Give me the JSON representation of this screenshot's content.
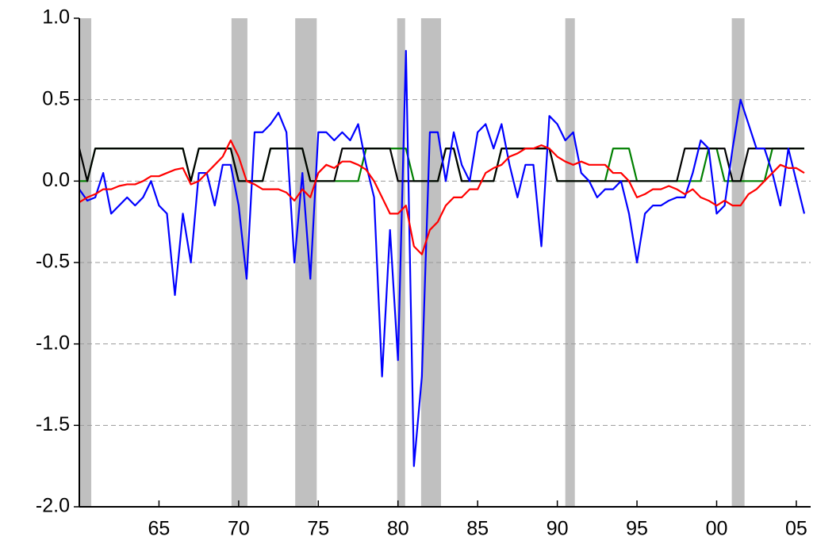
{
  "chart_data": {
    "type": "line",
    "x": [
      1960,
      1960.5,
      1961,
      1961.5,
      1962,
      1962.5,
      1963,
      1963.5,
      1964,
      1964.5,
      1965,
      1965.5,
      1966,
      1966.5,
      1967,
      1967.5,
      1968,
      1968.5,
      1969,
      1969.5,
      1970,
      1970.5,
      1971,
      1971.5,
      1972,
      1972.5,
      1973,
      1973.5,
      1974,
      1974.5,
      1975,
      1975.5,
      1976,
      1976.5,
      1977,
      1977.5,
      1978,
      1978.5,
      1979,
      1979.5,
      1980,
      1980.5,
      1981,
      1981.5,
      1982,
      1982.5,
      1983,
      1983.5,
      1984,
      1984.5,
      1985,
      1985.5,
      1986,
      1986.5,
      1987,
      1987.5,
      1988,
      1988.5,
      1989,
      1989.5,
      1990,
      1990.5,
      1991,
      1991.5,
      1992,
      1992.5,
      1993,
      1993.5,
      1994,
      1994.5,
      1995,
      1995.5,
      1996,
      1996.5,
      1997,
      1997.5,
      1998,
      1998.5,
      1999,
      1999.5,
      2000,
      2000.5,
      2001,
      2001.5,
      2002,
      2002.5,
      2003,
      2003.5,
      2004,
      2004.5,
      2005,
      2005.5
    ],
    "series": [
      {
        "color": "#008000",
        "values": [
          0,
          0,
          0.2,
          0.2,
          0.2,
          0.2,
          0.2,
          0.2,
          0.2,
          0.2,
          0.2,
          0.2,
          0.2,
          0.2,
          0,
          0.2,
          0.2,
          0.2,
          0.2,
          0.2,
          0,
          0,
          0,
          0,
          0.2,
          0.2,
          0.2,
          0.2,
          0.2,
          0,
          0,
          0,
          0,
          0,
          0,
          0,
          0.2,
          0.2,
          0.2,
          0.2,
          0.2,
          0.2,
          0,
          0,
          0,
          0,
          0.2,
          0.2,
          0,
          0,
          0,
          0,
          0,
          0.2,
          0.2,
          0.2,
          0.2,
          0.2,
          0.2,
          0.2,
          0,
          0,
          0,
          0,
          0,
          0,
          0,
          0.2,
          0.2,
          0.2,
          0,
          0,
          0,
          0,
          0,
          0,
          0,
          0,
          0,
          0.2,
          0.2,
          0,
          0,
          0,
          0,
          0,
          0,
          0.2,
          0.2,
          0.2,
          0.2,
          0.2
        ]
      },
      {
        "color": "#000000",
        "values": [
          0.2,
          0,
          0.2,
          0.2,
          0.2,
          0.2,
          0.2,
          0.2,
          0.2,
          0.2,
          0.2,
          0.2,
          0.2,
          0.2,
          0,
          0.2,
          0.2,
          0.2,
          0.2,
          0.2,
          0,
          0,
          0,
          0,
          0.2,
          0.2,
          0.2,
          0.2,
          0.2,
          0,
          0,
          0,
          0,
          0.2,
          0.2,
          0.2,
          0.2,
          0.2,
          0.2,
          0.2,
          0,
          0,
          0,
          0,
          0,
          0,
          0.2,
          0.2,
          0,
          0,
          0,
          0,
          0,
          0.2,
          0.2,
          0.2,
          0.2,
          0.2,
          0.2,
          0.2,
          0,
          0,
          0,
          0,
          0,
          0,
          0,
          0,
          0,
          0,
          0,
          0,
          0,
          0,
          0,
          0,
          0.2,
          0.2,
          0.2,
          0.2,
          0.2,
          0.2,
          0,
          0,
          0.2,
          0.2,
          0.2,
          0.2,
          0.2,
          0.2,
          0.2,
          0.2
        ]
      },
      {
        "color": "#0000ff",
        "values": [
          -0.05,
          -0.12,
          -0.1,
          0.05,
          -0.2,
          -0.15,
          -0.1,
          -0.15,
          -0.1,
          0.0,
          -0.15,
          -0.2,
          -0.7,
          -0.2,
          -0.5,
          0.05,
          0.05,
          -0.15,
          0.1,
          0.1,
          -0.15,
          -0.6,
          0.3,
          0.3,
          0.35,
          0.42,
          0.3,
          -0.5,
          0.05,
          -0.6,
          0.3,
          0.3,
          0.25,
          0.3,
          0.25,
          0.35,
          0.1,
          -0.1,
          -1.2,
          -0.3,
          -1.1,
          0.8,
          -1.75,
          -1.2,
          0.3,
          0.3,
          0.0,
          0.3,
          0.1,
          0.0,
          0.3,
          0.35,
          0.2,
          0.35,
          0.1,
          -0.1,
          0.1,
          0.1,
          -0.4,
          0.4,
          0.35,
          0.25,
          0.3,
          0.05,
          0.0,
          -0.1,
          -0.05,
          -0.05,
          0.0,
          -0.2,
          -0.5,
          -0.2,
          -0.15,
          -0.15,
          -0.12,
          -0.1,
          -0.1,
          0.05,
          0.25,
          0.2,
          -0.2,
          -0.15,
          0.2,
          0.5,
          0.35,
          0.2,
          0.2,
          0.05,
          -0.15,
          0.2,
          0.0,
          -0.2
        ]
      },
      {
        "color": "#ff0000",
        "values": [
          -0.13,
          -0.1,
          -0.08,
          -0.05,
          -0.05,
          -0.03,
          -0.02,
          -0.02,
          0.0,
          0.03,
          0.03,
          0.05,
          0.07,
          0.08,
          -0.02,
          0.0,
          0.05,
          0.1,
          0.15,
          0.25,
          0.15,
          0.0,
          -0.02,
          -0.05,
          -0.05,
          -0.05,
          -0.07,
          -0.12,
          -0.05,
          -0.1,
          0.05,
          0.1,
          0.08,
          0.12,
          0.12,
          0.1,
          0.07,
          0.0,
          -0.1,
          -0.2,
          -0.2,
          -0.15,
          -0.4,
          -0.45,
          -0.3,
          -0.25,
          -0.15,
          -0.1,
          -0.1,
          -0.05,
          -0.05,
          0.05,
          0.08,
          0.1,
          0.15,
          0.17,
          0.2,
          0.2,
          0.22,
          0.2,
          0.15,
          0.12,
          0.1,
          0.12,
          0.1,
          0.1,
          0.1,
          0.05,
          0.05,
          0.0,
          -0.1,
          -0.08,
          -0.05,
          -0.05,
          -0.03,
          -0.05,
          -0.08,
          -0.05,
          -0.1,
          -0.12,
          -0.15,
          -0.12,
          -0.15,
          -0.15,
          -0.08,
          -0.05,
          0.0,
          0.05,
          0.1,
          0.08,
          0.08,
          0.05
        ]
      }
    ],
    "shaded_periods": [
      [
        1960.0,
        1960.75
      ],
      [
        1969.55,
        1970.55
      ],
      [
        1973.55,
        1974.9
      ],
      [
        1979.95,
        1980.45
      ],
      [
        1981.45,
        1982.7
      ],
      [
        1990.5,
        1991.1
      ],
      [
        2000.95,
        2001.75
      ]
    ],
    "shade_color": "#c0c0c0",
    "xlim": [
      1960,
      2005.9
    ],
    "xticks": [
      {
        "value": 1965,
        "label": "65"
      },
      {
        "value": 1970,
        "label": "70"
      },
      {
        "value": 1975,
        "label": "75"
      },
      {
        "value": 1980,
        "label": "80"
      },
      {
        "value": 1985,
        "label": "85"
      },
      {
        "value": 1990,
        "label": "90"
      },
      {
        "value": 1995,
        "label": "95"
      },
      {
        "value": 2000,
        "label": "00"
      },
      {
        "value": 2005,
        "label": "05"
      }
    ],
    "ylim": [
      -2,
      1
    ],
    "yticks": [
      {
        "value": -2,
        "label": "-2.0"
      },
      {
        "value": -1.5,
        "label": "-1.5"
      },
      {
        "value": -1,
        "label": "-1.0"
      },
      {
        "value": -0.5,
        "label": "-0.5"
      },
      {
        "value": 0,
        "label": "0.0"
      },
      {
        "value": 0.5,
        "label": "0.5"
      },
      {
        "value": 1,
        "label": "1.0"
      }
    ],
    "grid": true
  }
}
